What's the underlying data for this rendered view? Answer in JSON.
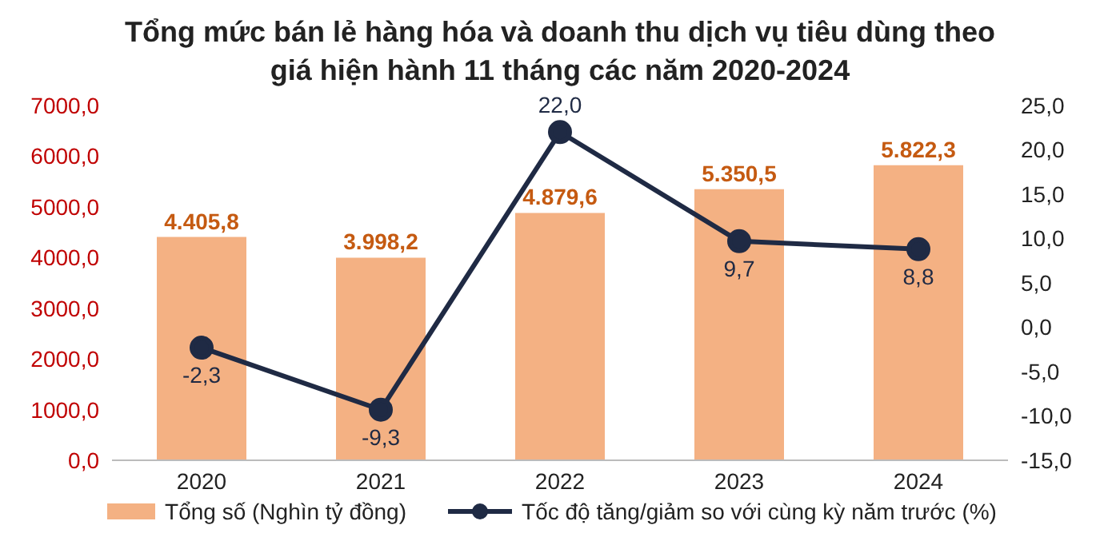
{
  "chart_data": {
    "type": "bar",
    "title": "Tổng mức bán lẻ hàng hóa và doanh thu dịch vụ tiêu dùng theo giá hiện hành 11 tháng các năm 2020-2024",
    "categories": [
      "2020",
      "2021",
      "2022",
      "2023",
      "2024"
    ],
    "series": [
      {
        "name": "Tổng số (Nghìn tỷ đồng)",
        "color": "#f4b183",
        "values": [
          4405.8,
          3998.2,
          4879.6,
          5350.5,
          5822.3
        ],
        "value_labels": [
          "4.405,8",
          "3.998,2",
          "4.879,6",
          "5.350,5",
          "5.822,3"
        ]
      },
      {
        "name": "Tốc độ tăng/giảm so với cùng kỳ năm trước (%)",
        "type": "line",
        "axis": "y2",
        "color": "#1f2a44",
        "values": [
          -2.3,
          -9.3,
          22.0,
          9.7,
          8.8
        ],
        "value_labels": [
          "-2,3",
          "-9,3",
          "22,0",
          "9,7",
          "8,8"
        ]
      }
    ],
    "ylim": [
      0,
      7000
    ],
    "yticks": [
      {
        "value": 0,
        "label": "0,0"
      },
      {
        "value": 1000,
        "label": "1000,0"
      },
      {
        "value": 2000,
        "label": "2000,0"
      },
      {
        "value": 3000,
        "label": "3000,0"
      },
      {
        "value": 4000,
        "label": "4000,0"
      },
      {
        "value": 5000,
        "label": "5000,0"
      },
      {
        "value": 6000,
        "label": "6000,0"
      },
      {
        "value": 7000,
        "label": "7000,0"
      }
    ],
    "y2lim": [
      -15,
      25
    ],
    "y2ticks": [
      {
        "value": -15,
        "label": "-15,0"
      },
      {
        "value": -10,
        "label": "-10,0"
      },
      {
        "value": -5,
        "label": "-5,0"
      },
      {
        "value": 0,
        "label": "0,0"
      },
      {
        "value": 5,
        "label": "5,0"
      },
      {
        "value": 10,
        "label": "10,0"
      },
      {
        "value": 15,
        "label": "15,0"
      },
      {
        "value": 20,
        "label": "20,0"
      },
      {
        "value": 25,
        "label": "25,0"
      }
    ],
    "marker": "circle",
    "legend": "bottom",
    "grid": false
  }
}
